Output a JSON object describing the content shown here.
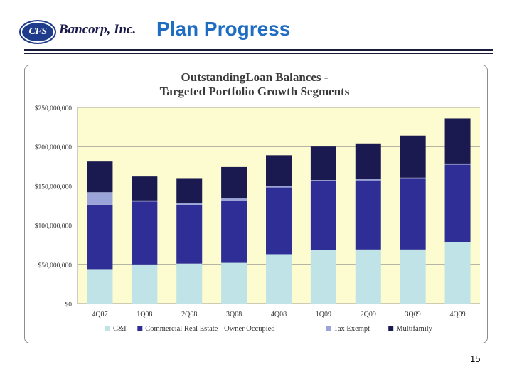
{
  "header": {
    "logo_badge": "CFS",
    "company_name": "Bancorp, Inc.",
    "title": "Plan Progress"
  },
  "page_number": "15",
  "colors": {
    "title_blue": "#1f6dc2",
    "plot_background": "#fdfbd0",
    "gridline": "#8c8c8c",
    "ci": "#bfe3e6",
    "cre_owner_occupied": "#2e2e96",
    "tax_exempt": "#9aa4d8",
    "multifamily": "#1a1a50"
  },
  "chart_data": {
    "type": "bar",
    "stacked": true,
    "title": "OutstandingLoan Balances -",
    "subtitle": "Targeted Portfolio Growth Segments",
    "categories": [
      "4Q07",
      "1Q08",
      "2Q08",
      "3Q08",
      "4Q08",
      "1Q09",
      "2Q09",
      "3Q09",
      "4Q09"
    ],
    "series": [
      {
        "name": "C&I",
        "color": "#bfe3e6",
        "values": [
          44000000,
          50000000,
          51000000,
          52000000,
          63000000,
          68000000,
          69000000,
          69000000,
          78000000
        ]
      },
      {
        "name": "Commercial Real Estate - Owner Occupied",
        "color": "#2e2e96",
        "values": [
          82000000,
          80000000,
          75000000,
          79000000,
          85000000,
          88000000,
          88000000,
          90000000,
          99000000
        ]
      },
      {
        "name": "Tax Exempt",
        "color": "#9aa4d8",
        "values": [
          16000000,
          1500000,
          2500000,
          3000000,
          1500000,
          1500000,
          1500000,
          1500000,
          1500000
        ]
      },
      {
        "name": "Multifamily",
        "color": "#1a1a50",
        "values": [
          39000000,
          30500000,
          30500000,
          40000000,
          39500000,
          42500000,
          45500000,
          53500000,
          57500000
        ]
      }
    ],
    "y_ticks": [
      "$0",
      "$50,000,000",
      "$100,000,000",
      "$150,000,000",
      "$200,000,000",
      "$250,000,000"
    ],
    "ylim": [
      0,
      250000000
    ],
    "grid": true,
    "legend_position": "bottom"
  }
}
